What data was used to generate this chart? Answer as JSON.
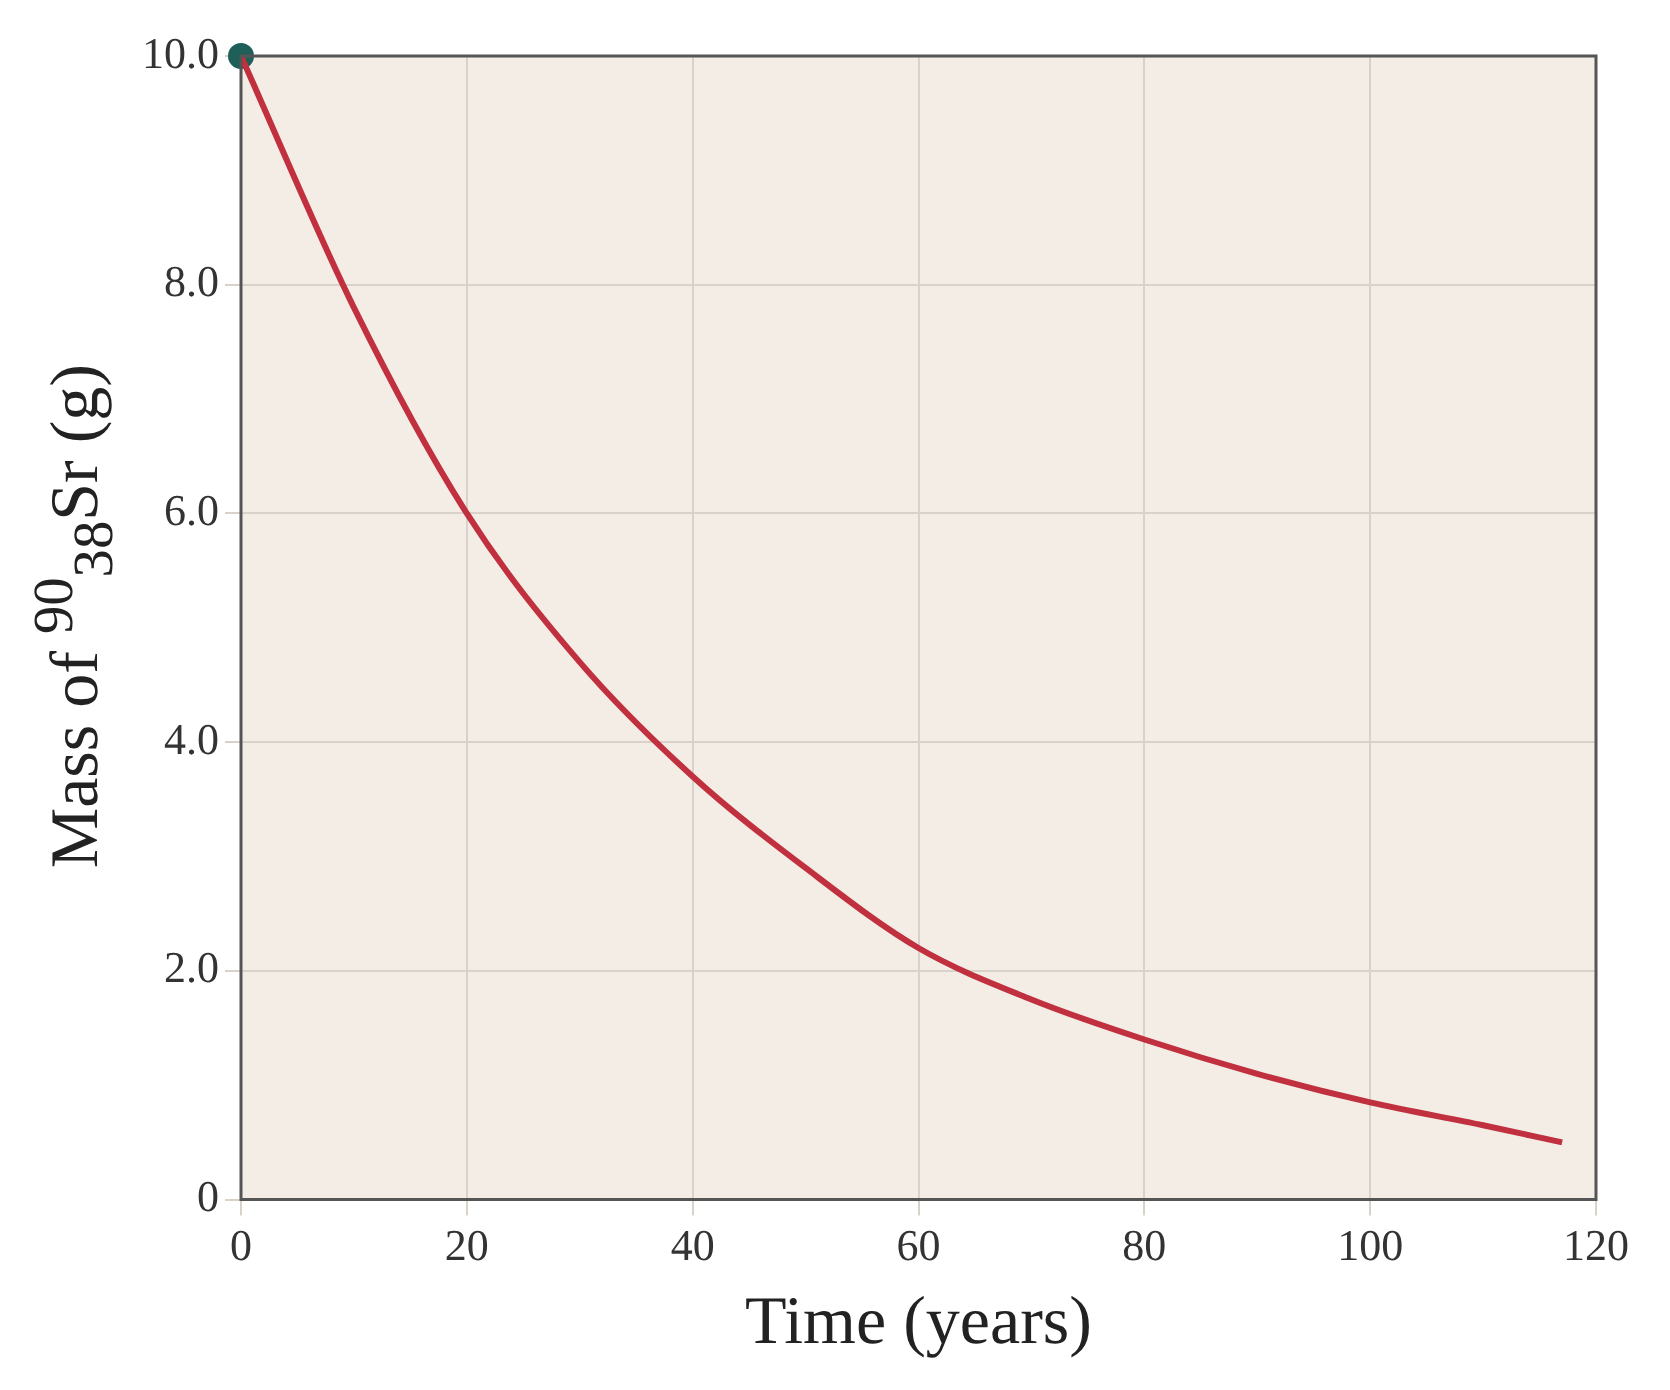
{
  "chart_data": {
    "type": "line",
    "xlabel": "Time (years)",
    "ylabel": "Mass of $^{90}$$_{38}$Sr (g)",
    "xlim": [
      0,
      120
    ],
    "xticks": [
      0,
      20,
      40,
      60,
      80,
      100,
      120
    ],
    "ylim": [
      0,
      10
    ],
    "yticks": [
      {
        "value": 0,
        "label": "0"
      },
      {
        "value": 2,
        "label": "2.0"
      },
      {
        "value": 4,
        "label": "4.0"
      },
      {
        "value": 6,
        "label": "6.0"
      },
      {
        "value": 8,
        "label": "8.0"
      },
      {
        "value": 10,
        "label": "10.0"
      }
    ],
    "grid": true,
    "legend": false,
    "series": [
      {
        "color": "#c0303e",
        "marker": "none",
        "x": [
          0,
          10,
          20,
          30,
          40,
          50,
          60,
          70,
          80,
          90,
          100,
          110,
          117
        ],
        "values": [
          10,
          7.8,
          6.0,
          4.7,
          3.7,
          2.9,
          2.2,
          1.75,
          1.4,
          1.1,
          0.85,
          0.65,
          0.5
        ]
      },
      {
        "type": "scatter",
        "color": "#1f5f5a",
        "marker": "circle",
        "x": [
          0
        ],
        "values": [
          10
        ]
      }
    ]
  }
}
